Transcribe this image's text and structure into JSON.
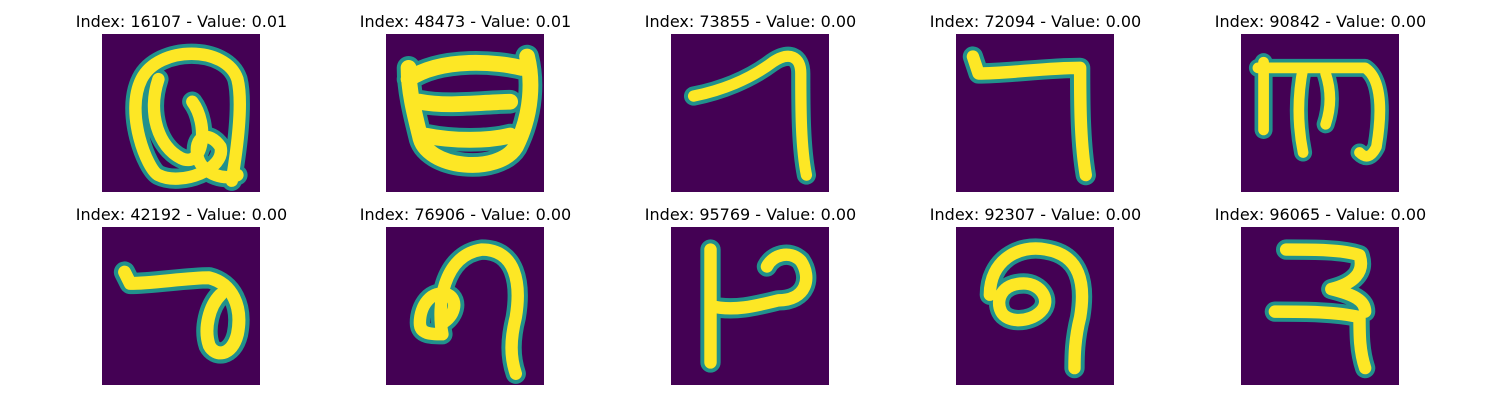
{
  "colors": {
    "background": "#440154",
    "stroke_core": "#fde725",
    "stroke_edge": "#21918c"
  },
  "panels": [
    {
      "title": "Index: 16107 - Value: 0.01",
      "glyph": "loop-a-shape"
    },
    {
      "title": "Index: 48473 - Value: 0.01",
      "glyph": "bowl-shape"
    },
    {
      "title": "Index: 73855 - Value: 0.00",
      "glyph": "hook-7-shape"
    },
    {
      "title": "Index: 72094 - Value: 0.00",
      "glyph": "angle-7-shape"
    },
    {
      "title": "Index: 90842 - Value: 0.00",
      "glyph": "m-shape"
    },
    {
      "title": "Index: 42192 - Value: 0.00",
      "glyph": "bar-loop-shape"
    },
    {
      "title": "Index: 76906 - Value: 0.00",
      "glyph": "curl-shape"
    },
    {
      "title": "Index: 95769 - Value: 0.00",
      "glyph": "h-loop-shape"
    },
    {
      "title": "Index: 92307 - Value: 0.00",
      "glyph": "curl-9-shape"
    },
    {
      "title": "Index: 96065 - Value: 0.00",
      "glyph": "r-hook-shape"
    }
  ]
}
